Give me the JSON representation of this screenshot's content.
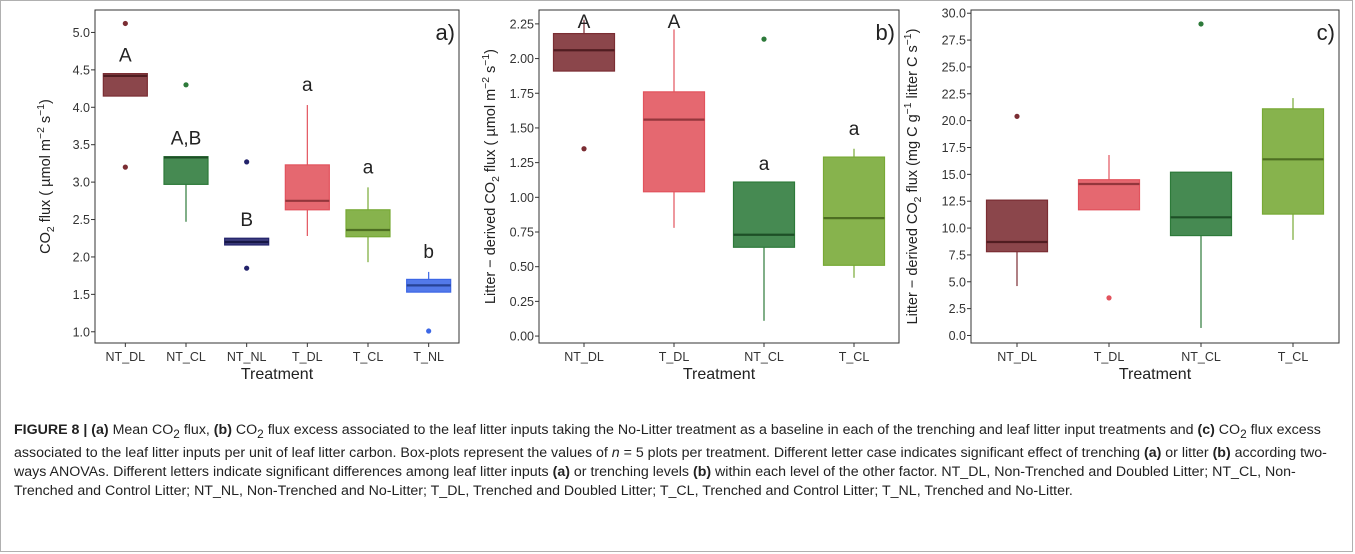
{
  "colors": {
    "NT_DL": "#7b2d33",
    "NT_CL": "#2d7a3a",
    "NT_NL": "#23236b",
    "T_DL": "#e2535d",
    "T_CL": "#77a935",
    "T_NL": "#3c67e6"
  },
  "caption": {
    "label": "FIGURE 8 |",
    "a_tag": "(a)",
    "part1": " Mean CO",
    "sub1": "2",
    "part2": " flux, ",
    "b_tag": "(b)",
    "part3": " CO",
    "sub2": "2",
    "part4": " flux excess associated to the leaf litter inputs taking the No-Litter treatment as a baseline in each of the trenching and leaf litter input treatments and ",
    "c_tag": "(c)",
    "part5": " CO",
    "sub3": "2",
    "part6": " flux excess associated to the leaf litter inputs per unit of leaf litter carbon. Box-plots represent the values of ",
    "n_italic": "n",
    "part7": " = 5 plots per treatment. Different letter case indicates significant effect of trenching ",
    "a_tag2": "(a)",
    "part8": " or litter ",
    "b_tag2": "(b)",
    "part9": " according two-ways ANOVAs. Different letters indicate significant differences among leaf litter inputs ",
    "a_tag3": "(a)",
    "part10": " or trenching levels ",
    "b_tag3": "(b)",
    "part11": " within each level of the other factor. NT_DL, Non-Trenched and Doubled Litter; NT_CL, Non-Trenched and Control Litter; NT_NL, Non-Trenched and No-Litter; T_DL, Trenched and Doubled Litter; T_CL, Trenched and Control Litter; T_NL, Trenched and No-Litter."
  },
  "chart_data": [
    {
      "type": "box",
      "panel_label": "a)",
      "xlabel": "Treatment",
      "ylabel": {
        "pre": "CO",
        "sub": "2",
        "mid": " flux ( µmol m",
        "sup1": "−2",
        "mid2": " s",
        "sup2": "−1",
        "post": ")"
      },
      "ylim": [
        0.85,
        5.3
      ],
      "yticks": [
        "1.0",
        "1.5",
        "2.0",
        "2.5",
        "3.0",
        "3.5",
        "4.0",
        "4.5",
        "5.0"
      ],
      "categories": [
        "NT_DL",
        "NT_CL",
        "NT_NL",
        "T_DL",
        "T_CL",
        "T_NL"
      ],
      "boxes": [
        {
          "q1": 4.15,
          "median": 4.42,
          "q3": 4.45,
          "whisker_low": 4.15,
          "whisker_high": 4.45,
          "outliers": [
            5.12,
            3.2
          ],
          "letter": "A"
        },
        {
          "q1": 2.97,
          "median": 3.33,
          "q3": 3.34,
          "whisker_low": 2.47,
          "whisker_high": 3.34,
          "outliers": [
            4.3
          ],
          "letter": "A,B"
        },
        {
          "q1": 2.16,
          "median": 2.2,
          "q3": 2.25,
          "whisker_low": 2.16,
          "whisker_high": 2.25,
          "outliers": [
            3.27,
            1.85
          ],
          "letter": "B"
        },
        {
          "q1": 2.63,
          "median": 2.75,
          "q3": 3.23,
          "whisker_low": 2.28,
          "whisker_high": 4.03,
          "outliers": [],
          "letter": "a"
        },
        {
          "q1": 2.27,
          "median": 2.36,
          "q3": 2.63,
          "whisker_low": 1.93,
          "whisker_high": 2.93,
          "outliers": [],
          "letter": "a"
        },
        {
          "q1": 1.53,
          "median": 1.62,
          "q3": 1.7,
          "whisker_low": 1.53,
          "whisker_high": 1.8,
          "outliers": [
            1.01
          ],
          "letter": "b"
        }
      ]
    },
    {
      "type": "box",
      "panel_label": "b)",
      "xlabel": "Treatment",
      "ylabel": {
        "pre": "Litter − derived CO",
        "sub": "2",
        "mid": " flux ( µmol m",
        "sup1": "−2",
        "mid2": " s",
        "sup2": "−1",
        "post": ")"
      },
      "ylim": [
        -0.05,
        2.35
      ],
      "yticks": [
        "0.00",
        "0.25",
        "0.50",
        "0.75",
        "1.00",
        "1.25",
        "1.50",
        "1.75",
        "2.00",
        "2.25"
      ],
      "categories": [
        "NT_DL",
        "T_DL",
        "NT_CL",
        "T_CL"
      ],
      "boxes": [
        {
          "q1": 1.91,
          "median": 2.06,
          "q3": 2.18,
          "whisker_low": 1.91,
          "whisker_high": 2.28,
          "outliers": [
            1.35
          ],
          "letter": "A"
        },
        {
          "q1": 1.04,
          "median": 1.56,
          "q3": 1.76,
          "whisker_low": 0.78,
          "whisker_high": 2.21,
          "outliers": [],
          "letter": "A"
        },
        {
          "q1": 0.64,
          "median": 0.73,
          "q3": 1.11,
          "whisker_low": 0.11,
          "whisker_high": 1.11,
          "outliers": [
            2.14
          ],
          "letter": "a"
        },
        {
          "q1": 0.51,
          "median": 0.85,
          "q3": 1.29,
          "whisker_low": 0.42,
          "whisker_high": 1.35,
          "outliers": [],
          "letter": "a"
        }
      ]
    },
    {
      "type": "box",
      "panel_label": "c)",
      "xlabel": "Treatment",
      "ylabel": {
        "pre": "Litter − derived CO",
        "sub": "2",
        "mid": " flux (mg C g",
        "sup1": "−1",
        "mid2": " litter C s",
        "sup2": "−1",
        "post": ")"
      },
      "ylim": [
        -0.7,
        30.3
      ],
      "yticks": [
        "0.0",
        "2.5",
        "5.0",
        "7.5",
        "10.0",
        "12.5",
        "15.0",
        "17.5",
        "20.0",
        "22.5",
        "25.0",
        "27.5",
        "30.0"
      ],
      "categories": [
        "NT_DL",
        "T_DL",
        "NT_CL",
        "T_CL"
      ],
      "boxes": [
        {
          "q1": 7.8,
          "median": 8.7,
          "q3": 12.6,
          "whisker_low": 4.6,
          "whisker_high": 12.6,
          "outliers": [
            20.4
          ],
          "letter": ""
        },
        {
          "q1": 11.7,
          "median": 14.1,
          "q3": 14.5,
          "whisker_low": 11.7,
          "whisker_high": 16.8,
          "outliers": [
            3.5
          ],
          "letter": ""
        },
        {
          "q1": 9.3,
          "median": 11.0,
          "q3": 15.2,
          "whisker_low": 0.7,
          "whisker_high": 15.2,
          "outliers": [
            29.0
          ],
          "letter": ""
        },
        {
          "q1": 11.3,
          "median": 16.4,
          "q3": 21.1,
          "whisker_low": 8.9,
          "whisker_high": 22.1,
          "outliers": [],
          "letter": ""
        }
      ]
    }
  ]
}
